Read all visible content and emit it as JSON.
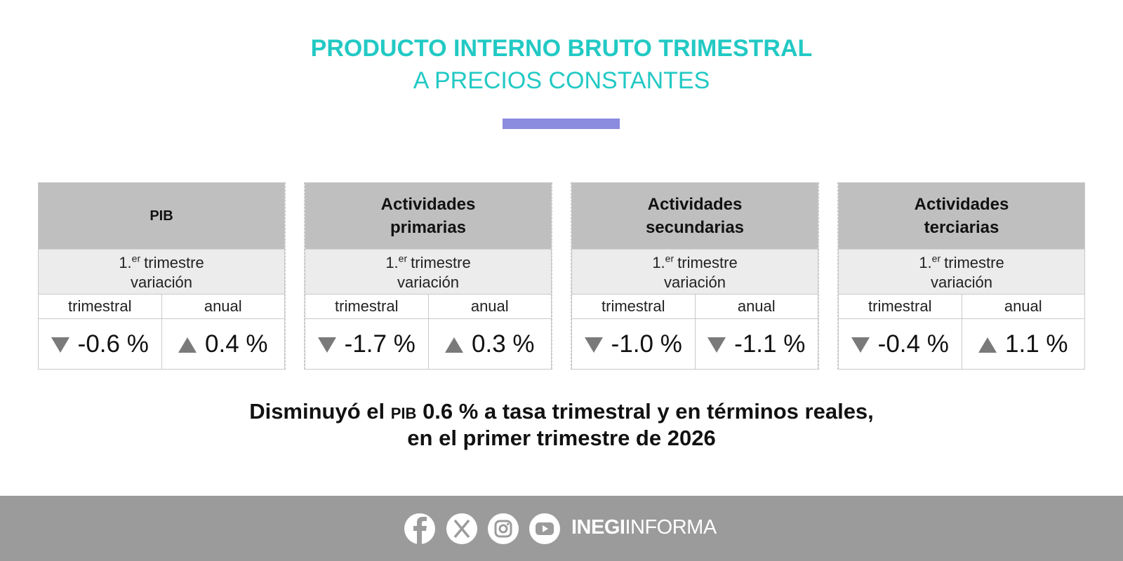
{
  "header": {
    "title": "PRODUCTO INTERNO BRUTO TRIMESTRAL",
    "subtitle": "A PRECIOS CONSTANTES"
  },
  "table": {
    "groups": [
      {
        "heading": "PIB",
        "period": {
          "ordinal": "1.",
          "suffix": "er",
          "word": "trimestre"
        },
        "measure": "variación",
        "columns": [
          "trimestral",
          "anual"
        ],
        "values": [
          "-0.6 %",
          "0.4 %"
        ]
      },
      {
        "heading": "Actividades primarias",
        "period": {
          "ordinal": "1.",
          "suffix": "er",
          "word": "trimestre"
        },
        "measure": "variación",
        "columns": [
          "trimestral",
          "anual"
        ],
        "values": [
          "-1.7 %",
          "0.3 %"
        ]
      },
      {
        "heading": "Actividades secundarias",
        "period": {
          "ordinal": "1.",
          "suffix": "er",
          "word": "trimestre"
        },
        "measure": "variación",
        "columns": [
          "trimestral",
          "anual"
        ],
        "values": [
          "-1.0 %",
          "-1.1 %"
        ]
      },
      {
        "heading": "Actividades terciarias",
        "period": {
          "ordinal": "1.",
          "suffix": "er",
          "word": "trimestre"
        },
        "measure": "variación",
        "columns": [
          "trimestral",
          "anual"
        ],
        "values": [
          "-0.4 %",
          "1.1 %"
        ]
      }
    ]
  },
  "summary": {
    "line1": {
      "before": "Disminuyó el",
      "abbr": "PIB",
      "after": "0.6 % a tasa trimestral y en términos reales,"
    },
    "line2": "en el primer trimestre de 2026"
  },
  "footer": {
    "brand_bold": "INEGI",
    "brand_light": "INFORMA"
  }
}
